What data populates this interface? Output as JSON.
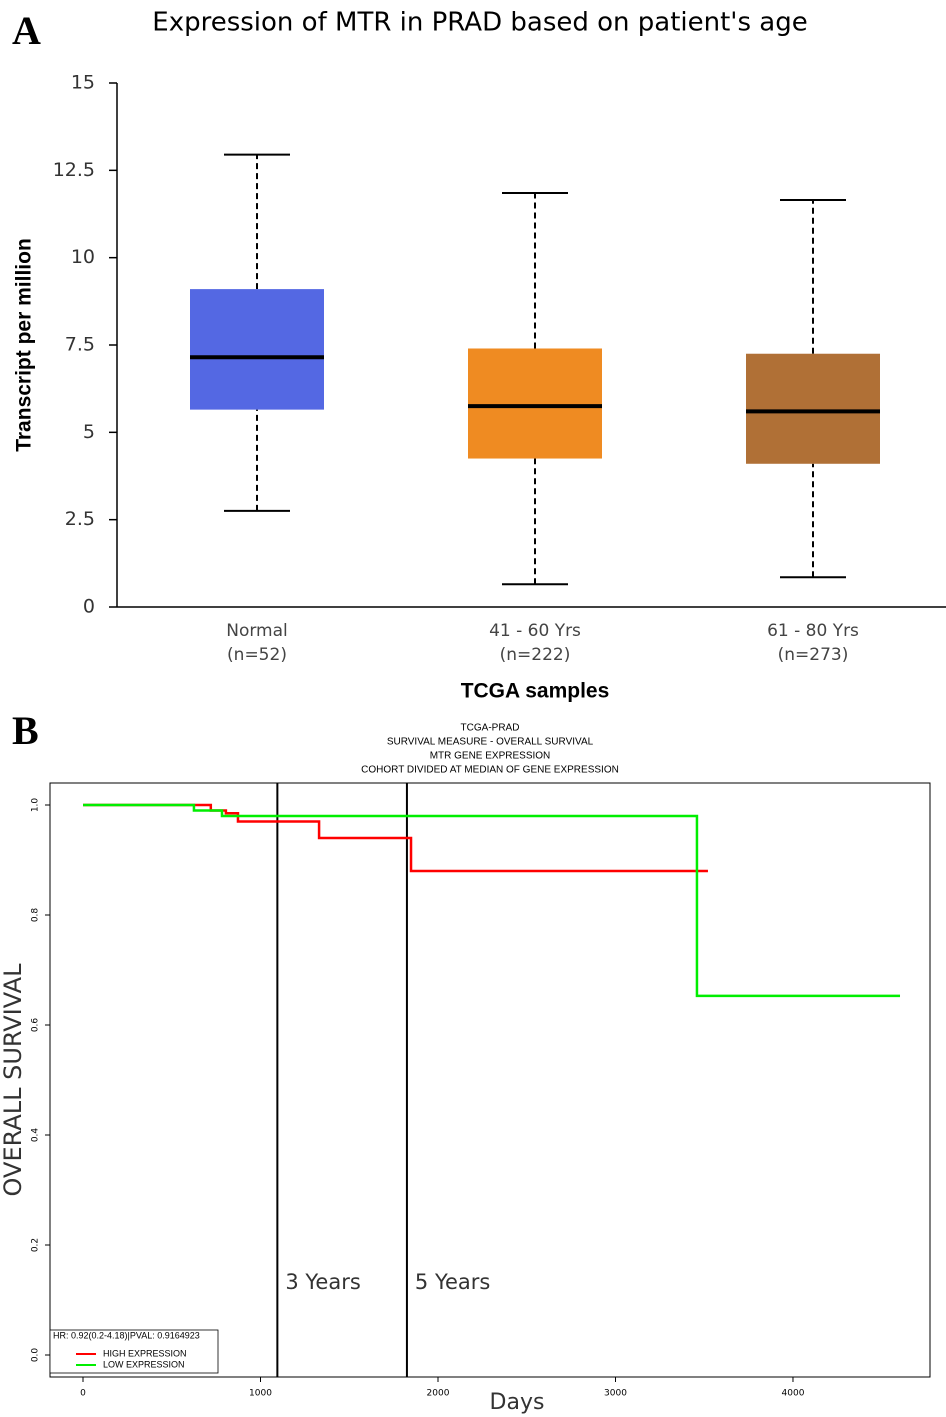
{
  "chart_data": [
    {
      "type": "box",
      "panel_label": "A",
      "title": "Expression of MTR in PRAD based on patient's age",
      "ylabel": "Transcript per million",
      "xlabel": "TCGA samples",
      "categories": [
        "Normal",
        "41 - 60 Yrs",
        "61 - 80 Yrs"
      ],
      "sample_sizes": [
        "(n=52)",
        "(n=222)",
        "(n=273)"
      ],
      "boxes": [
        {
          "min": 2.75,
          "q1": 5.65,
          "median": 7.15,
          "q3": 9.1,
          "max": 12.95,
          "color": "#5468e3"
        },
        {
          "min": 0.65,
          "q1": 4.25,
          "median": 5.75,
          "q3": 7.4,
          "max": 11.85,
          "color": "#ef8b22"
        },
        {
          "min": 0.85,
          "q1": 4.1,
          "median": 5.6,
          "q3": 7.25,
          "max": 11.65,
          "color": "#b07036"
        }
      ],
      "ylim": [
        0,
        15
      ],
      "yticks": [
        0,
        2.5,
        5,
        7.5,
        10,
        12.5,
        15
      ]
    },
    {
      "type": "step",
      "panel_label": "B",
      "title_lines": [
        "TCGA-PRAD",
        "SURVIVAL MEASURE - OVERALL SURVIVAL",
        "MTR GENE EXPRESSION",
        "COHORT DIVIDED AT MEDIAN OF GENE EXPRESSION"
      ],
      "ylabel": "OVERALL SURVIVAL",
      "xlabel": "Days",
      "stats_text": "HR: 0.92(0.2-4.18)|PVAL: 0.9164923",
      "series": [
        {
          "name": "HIGH EXPRESSION",
          "color": "#ff0000",
          "x": [
            0,
            720,
            805,
            873,
            1330,
            1848,
            3521
          ],
          "values": [
            1.0,
            0.99,
            0.985,
            0.97,
            0.94,
            0.88,
            0.88
          ]
        },
        {
          "name": "LOW EXPRESSION",
          "color": "#00ee00",
          "x": [
            0,
            625,
            783,
            3459,
            4603
          ],
          "values": [
            1.0,
            0.99,
            0.98,
            0.653,
            0.653
          ]
        }
      ],
      "annotations": [
        {
          "x": 1095,
          "label": "3 Years"
        },
        {
          "x": 1825,
          "label": "5 Years"
        }
      ],
      "xlim": [
        -186,
        4772
      ],
      "xticks": [
        0,
        1000,
        2000,
        3000,
        4000
      ],
      "ylim": [
        -0.04,
        1.04
      ],
      "yticks": [
        {
          "value": 0,
          "label": "0.0"
        },
        0.2,
        0.4,
        0.6,
        0.8,
        {
          "value": 1,
          "label": "1.0"
        }
      ]
    }
  ]
}
